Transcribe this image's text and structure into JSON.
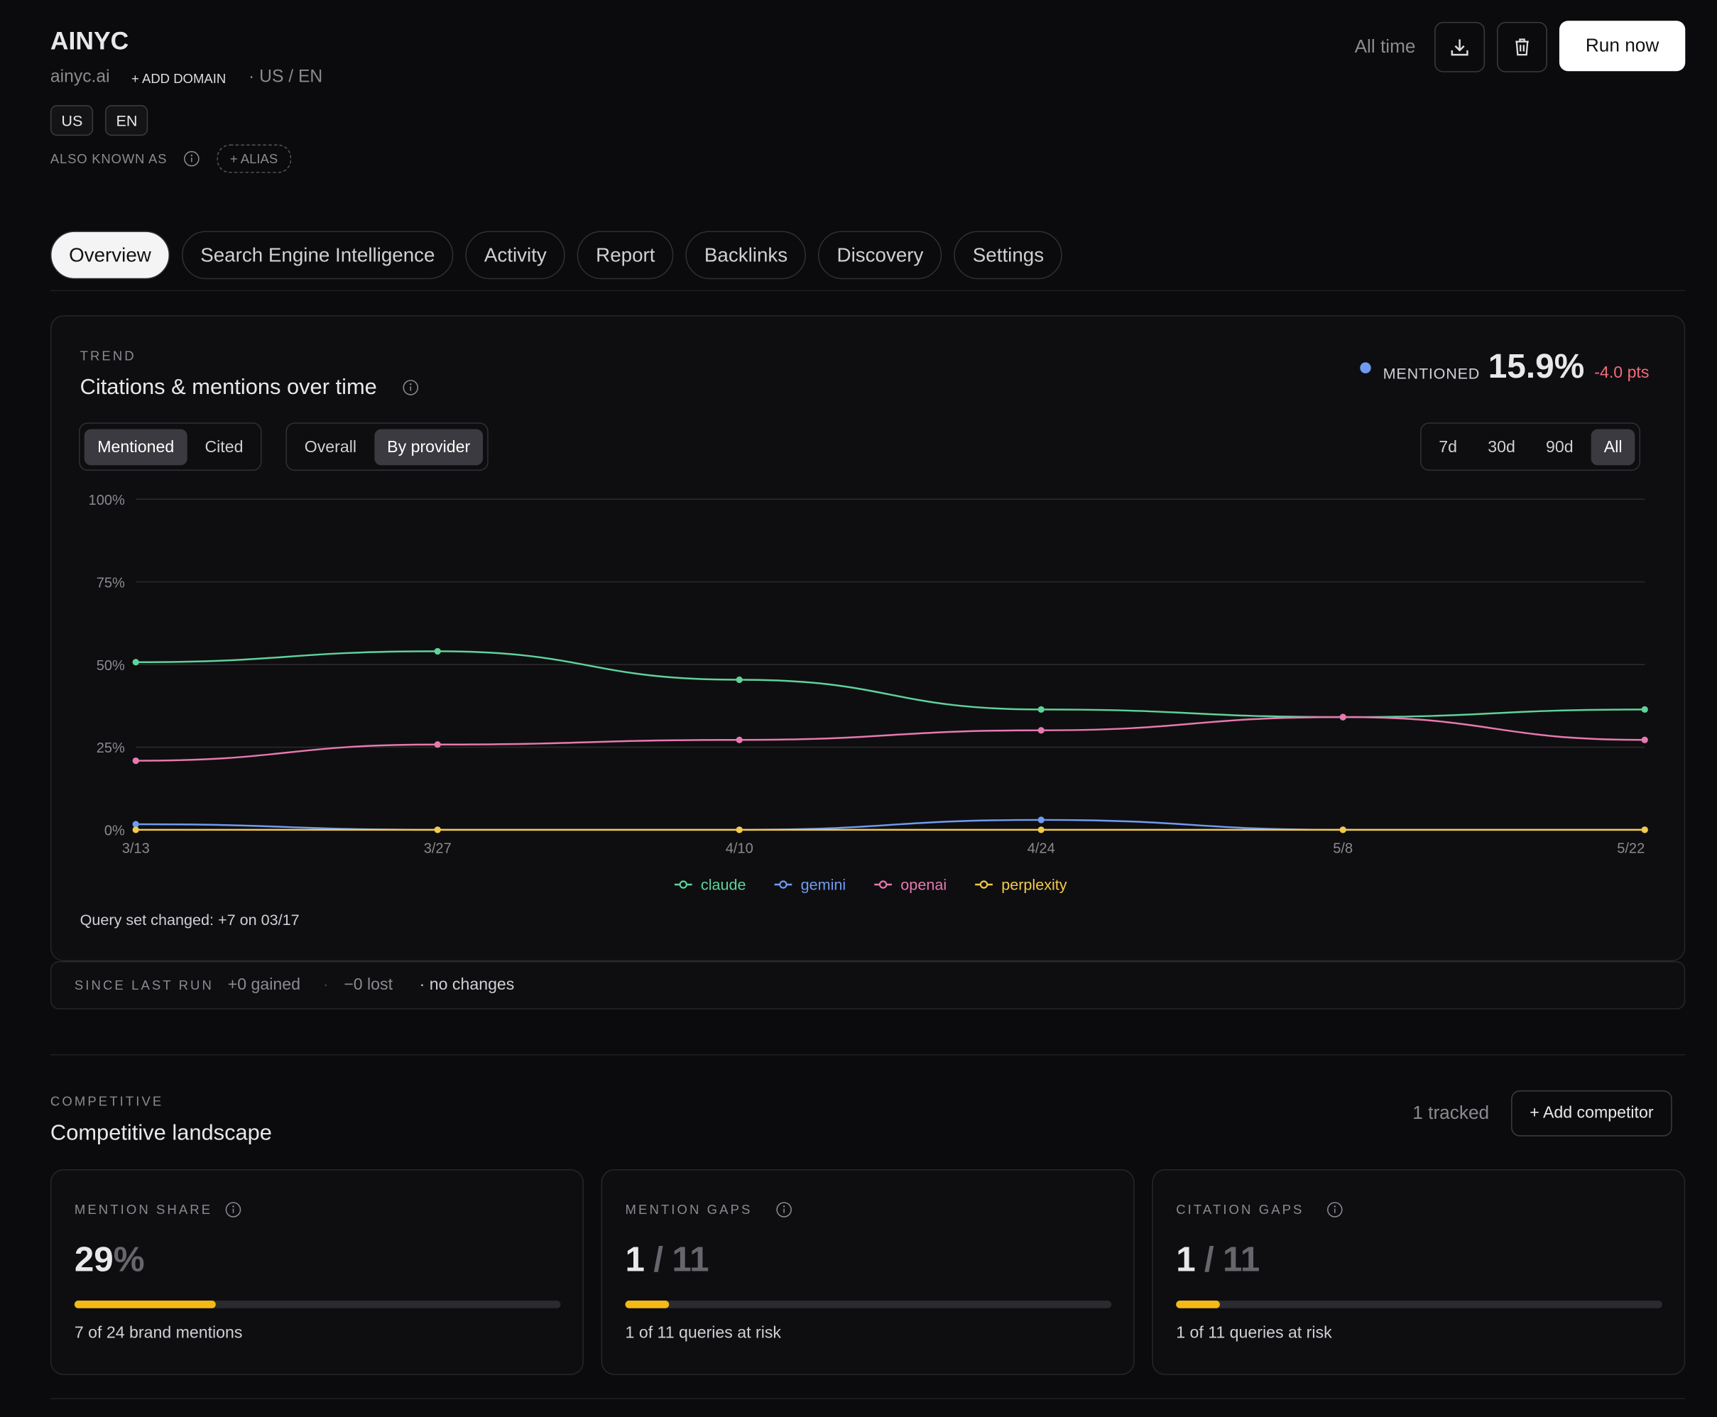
{
  "header": {
    "title": "AINYC",
    "domain": "ainyc.ai",
    "add_domain": "+ ADD DOMAIN",
    "locale": "· US / EN",
    "chips": [
      "US",
      "EN"
    ],
    "aka_label": "ALSO KNOWN AS",
    "add_alias": "+ ALIAS",
    "range_label": "All time",
    "run_button": "Run now"
  },
  "tabs": [
    "Overview",
    "Search Engine Intelligence",
    "Activity",
    "Report",
    "Backlinks",
    "Discovery",
    "Settings"
  ],
  "trend": {
    "eyebrow": "TREND",
    "title": "Citations & mentions over time",
    "metric_label": "MENTIONED",
    "metric_value": "15.9%",
    "metric_delta": "-4.0 pts",
    "toggle_a": [
      "Mentioned",
      "Cited"
    ],
    "toggle_b": [
      "Overall",
      "By provider"
    ],
    "ranges": [
      "7d",
      "30d",
      "90d",
      "All"
    ],
    "note": "Query set changed: +7 on 03/17"
  },
  "chart_data": {
    "type": "line",
    "categories": [
      "3/13",
      "3/27",
      "4/10",
      "4/24",
      "5/8",
      "5/22"
    ],
    "series": [
      {
        "name": "claude",
        "color": "#5fd39a",
        "values": [
          50.7,
          54,
          45.4,
          36.4,
          34.1,
          36.4
        ]
      },
      {
        "name": "gemini",
        "color": "#6f9cf0",
        "values": [
          1.7,
          0,
          0,
          3,
          0,
          0
        ]
      },
      {
        "name": "openai",
        "color": "#e879b0",
        "values": [
          20.9,
          25.8,
          27.2,
          30.1,
          34.1,
          27.2
        ]
      },
      {
        "name": "perplexity",
        "color": "#f2c94c",
        "values": [
          0,
          0,
          0,
          0,
          0,
          0
        ]
      }
    ],
    "ylim": [
      0,
      100
    ],
    "yticks": [
      {
        "value": 0,
        "label": "0%"
      },
      {
        "value": 25,
        "label": "25%"
      },
      {
        "value": 50,
        "label": "50%"
      },
      {
        "value": 75,
        "label": "75%"
      },
      {
        "value": 100,
        "label": "100%"
      }
    ],
    "grid": true
  },
  "since_last_run": {
    "label": "SINCE LAST RUN",
    "gained": "+0 gained",
    "sep": "·",
    "lost": "−0 lost",
    "status": "· no changes"
  },
  "competitive": {
    "eyebrow": "COMPETITIVE",
    "title": "Competitive landscape",
    "tracked": "1 tracked",
    "add_button": "+ Add competitor",
    "cards": [
      {
        "label": "MENTION SHARE",
        "value": 29,
        "unit": "%",
        "caption": "7 of 24 brand mentions"
      },
      {
        "label": "MENTION GAPS",
        "value": 1,
        "separator": "/",
        "total": 11,
        "caption": "1 of 11 queries at risk"
      },
      {
        "label": "CITATION GAPS",
        "value": 1,
        "separator": "/",
        "total": 11,
        "caption": "1 of 11 queries at risk"
      }
    ]
  }
}
